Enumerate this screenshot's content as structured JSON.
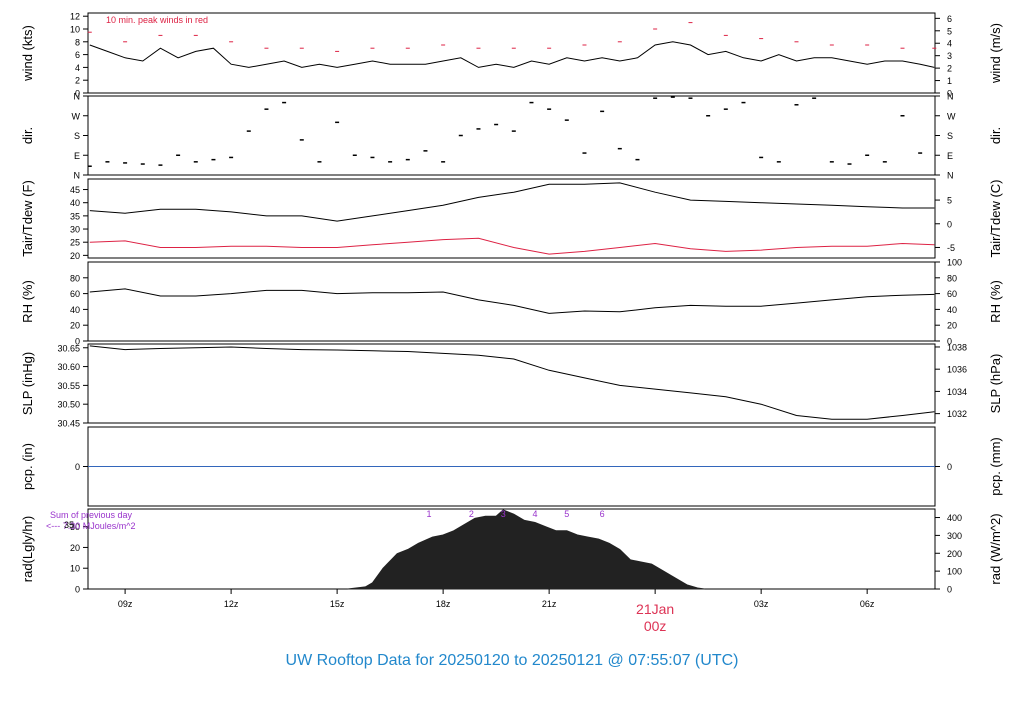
{
  "chart_data": {
    "type": "line",
    "title": "UW Rooftop Data for 20250120  to  20250121 @ 07:55:07  (UTC)",
    "x_axis": {
      "ticks": [
        "09z",
        "12z",
        "15z",
        "18z",
        "21z",
        "00z",
        "03z",
        "06z"
      ],
      "tick_hours": [
        9,
        12,
        15,
        18,
        21,
        24,
        27,
        30
      ],
      "range_hours": [
        7.95,
        31.92
      ],
      "date_marker": {
        "line1": "21Jan",
        "line2": "00z",
        "hour": 24
      }
    },
    "panels": [
      {
        "id": "wind",
        "ylabel_left": "wind (kts)",
        "ylabel_right": "wind (m/s)",
        "ylim": [
          0,
          12.5
        ],
        "left_ticks": [
          0,
          2,
          4,
          6,
          8,
          10,
          12
        ],
        "right_ticks": [
          0,
          1,
          2,
          3,
          4,
          5,
          6
        ],
        "annotation": "10 min. peak winds in red",
        "series": [
          {
            "name": "wind speed",
            "color": "#000000",
            "x": [
              8.0,
              8.5,
              9.0,
              9.5,
              10.0,
              10.5,
              11.0,
              11.5,
              12.0,
              12.5,
              13.0,
              13.5,
              14.0,
              14.5,
              15.0,
              15.5,
              16.0,
              16.5,
              17.0,
              17.5,
              18.0,
              18.5,
              19.0,
              19.5,
              20.0,
              20.5,
              21.0,
              21.5,
              22.0,
              22.5,
              23.0,
              23.5,
              24.0,
              24.5,
              25.0,
              25.5,
              26.0,
              26.5,
              27.0,
              27.5,
              28.0,
              28.5,
              29.0,
              29.5,
              30.0,
              30.5,
              31.0,
              31.5,
              31.9
            ],
            "y": [
              7.5,
              6.5,
              5.5,
              5.0,
              7.0,
              5.5,
              6.5,
              7.0,
              4.5,
              4.0,
              4.5,
              5.0,
              4.0,
              4.5,
              4.0,
              4.5,
              5.0,
              4.5,
              4.5,
              4.5,
              5.0,
              5.5,
              4.0,
              4.5,
              4.0,
              5.0,
              4.5,
              5.5,
              5.0,
              5.5,
              5.0,
              5.5,
              7.5,
              8.0,
              7.5,
              6.0,
              6.5,
              5.5,
              5.0,
              6.0,
              5.0,
              5.5,
              5.5,
              5.0,
              4.5,
              5.0,
              5.0,
              4.5,
              4.0
            ]
          },
          {
            "name": "10 min. peak winds",
            "color": "#dd2244",
            "x": [
              8.0,
              9.0,
              10.0,
              11.0,
              12.0,
              13.0,
              14.0,
              15.0,
              16.0,
              17.0,
              18.0,
              19.0,
              20.0,
              21.0,
              22.0,
              23.0,
              24.0,
              25.0,
              26.0,
              27.0,
              28.0,
              29.0,
              30.0,
              31.0,
              31.9
            ],
            "y": [
              9.5,
              8.0,
              9.0,
              9.0,
              8.0,
              7.0,
              7.0,
              6.5,
              7.0,
              7.0,
              7.5,
              7.0,
              7.0,
              7.0,
              7.5,
              8.0,
              10.0,
              11.0,
              9.0,
              8.5,
              8.0,
              7.5,
              7.5,
              7.0,
              7.0
            ]
          }
        ]
      },
      {
        "id": "dir",
        "ylabel_left": "dir.",
        "ylabel_right": "dir.",
        "ylim": [
          0,
          360
        ],
        "left_ticks": [
          "N",
          "E",
          "S",
          "W",
          "N"
        ],
        "right_ticks": [
          "N",
          "E",
          "S",
          "W",
          "N"
        ],
        "series": [
          {
            "name": "wind direction",
            "color": "#000000",
            "style": "dashes",
            "x": [
              8.0,
              8.5,
              9.0,
              9.5,
              10.0,
              10.5,
              11.0,
              11.5,
              12.0,
              12.5,
              13.0,
              13.5,
              14.0,
              14.5,
              15.0,
              15.5,
              16.0,
              16.5,
              17.0,
              17.5,
              18.0,
              18.5,
              19.0,
              19.5,
              20.0,
              20.5,
              21.0,
              21.5,
              22.0,
              22.5,
              23.0,
              23.5,
              24.0,
              24.5,
              25.0,
              25.5,
              26.0,
              26.5,
              27.0,
              27.5,
              28.0,
              28.5,
              29.0,
              29.5,
              30.0,
              30.5,
              31.0,
              31.5
            ],
            "y": [
              40,
              60,
              55,
              50,
              45,
              90,
              60,
              70,
              80,
              200,
              300,
              330,
              160,
              60,
              240,
              90,
              80,
              60,
              70,
              110,
              60,
              180,
              210,
              230,
              200,
              330,
              300,
              250,
              100,
              290,
              120,
              70,
              350,
              355,
              350,
              270,
              300,
              330,
              80,
              60,
              320,
              350,
              60,
              50,
              90,
              60,
              270,
              100
            ]
          }
        ]
      },
      {
        "id": "temp",
        "ylabel_left": "Tair/Tdew (F)",
        "ylabel_right": "Tair/Tdew (C)",
        "ylim": [
          19,
          49
        ],
        "left_ticks": [
          20,
          25,
          30,
          35,
          40,
          45
        ],
        "right_ticks": [
          -5,
          0,
          5
        ],
        "series": [
          {
            "name": "Tair",
            "color": "#000000",
            "x": [
              8.0,
              9.0,
              10.0,
              11.0,
              12.0,
              13.0,
              14.0,
              15.0,
              16.0,
              17.0,
              18.0,
              19.0,
              20.0,
              21.0,
              22.0,
              23.0,
              24.0,
              25.0,
              26.0,
              27.0,
              28.0,
              29.0,
              30.0,
              31.0,
              31.9
            ],
            "y": [
              37,
              36,
              37.5,
              37.5,
              36.5,
              35,
              35,
              33,
              35,
              37,
              39,
              42,
              44,
              47,
              47,
              47.5,
              44,
              41,
              40.5,
              40,
              39.5,
              39,
              38.5,
              38,
              38
            ]
          },
          {
            "name": "Tdew",
            "color": "#dd2244",
            "x": [
              8.0,
              9.0,
              10.0,
              11.0,
              12.0,
              13.0,
              14.0,
              15.0,
              16.0,
              17.0,
              18.0,
              19.0,
              20.0,
              21.0,
              22.0,
              23.0,
              24.0,
              25.0,
              26.0,
              27.0,
              28.0,
              29.0,
              30.0,
              31.0,
              31.9
            ],
            "y": [
              25,
              25.5,
              23,
              23,
              23.5,
              23.5,
              23,
              23,
              24,
              25,
              26,
              26.5,
              23,
              20.5,
              21.5,
              23,
              24.5,
              22.5,
              21.5,
              22,
              23,
              23.5,
              23.5,
              24.5,
              24
            ]
          }
        ]
      },
      {
        "id": "rh",
        "ylabel_left": "RH (%)",
        "ylabel_right": "RH (%)",
        "ylim": [
          0,
          100
        ],
        "left_ticks": [
          0,
          20,
          40,
          60,
          80
        ],
        "right_ticks": [
          0,
          20,
          40,
          60,
          80,
          100
        ],
        "series": [
          {
            "name": "RH",
            "color": "#000000",
            "x": [
              8.0,
              9.0,
              10.0,
              11.0,
              12.0,
              13.0,
              14.0,
              15.0,
              16.0,
              17.0,
              18.0,
              19.0,
              20.0,
              21.0,
              22.0,
              23.0,
              24.0,
              25.0,
              26.0,
              27.0,
              28.0,
              29.0,
              30.0,
              31.0,
              31.9
            ],
            "y": [
              62,
              66,
              57,
              57,
              60,
              64,
              64,
              60,
              61,
              61,
              62,
              52,
              45,
              35,
              38,
              37,
              42,
              45,
              44,
              44,
              48,
              52,
              56,
              58,
              59
            ]
          }
        ]
      },
      {
        "id": "slp",
        "ylabel_left": "SLP (inHg)",
        "ylabel_right": "SLP (hPa)",
        "ylim": [
          30.45,
          30.66
        ],
        "left_ticks": [
          30.45,
          30.5,
          30.55,
          30.6,
          30.65
        ],
        "left_tick_labels": [
          "30.45",
          "30.50",
          "30.55",
          "30.60",
          "30.65"
        ],
        "right_ticks": [
          1032,
          1034,
          1036,
          1038
        ],
        "series": [
          {
            "name": "SLP",
            "color": "#000000",
            "x": [
              8.0,
              9.0,
              10.0,
              11.0,
              12.0,
              13.0,
              14.0,
              15.0,
              16.0,
              17.0,
              18.0,
              19.0,
              20.0,
              21.0,
              22.0,
              23.0,
              24.0,
              25.0,
              26.0,
              27.0,
              28.0,
              29.0,
              30.0,
              31.0,
              31.9
            ],
            "y": [
              30.655,
              30.645,
              30.648,
              30.65,
              30.652,
              30.648,
              30.645,
              30.644,
              30.642,
              30.64,
              30.635,
              30.63,
              30.62,
              30.59,
              30.57,
              30.55,
              30.54,
              30.53,
              30.52,
              30.5,
              30.47,
              30.46,
              30.46,
              30.47,
              30.48
            ]
          }
        ]
      },
      {
        "id": "pcp",
        "ylabel_left": "pcp. (in)",
        "ylabel_right": "pcp. (mm)",
        "ylim": [
          -1,
          1
        ],
        "left_ticks": [
          0
        ],
        "right_ticks": [
          0
        ],
        "series": [
          {
            "name": "precipitation",
            "color": "#3366bb",
            "x": [
              7.95,
              31.92
            ],
            "y": [
              0,
              0
            ]
          }
        ]
      },
      {
        "id": "rad",
        "ylabel_left": "rad(Lgly/hr)",
        "ylabel_right": "rad (W/m^2)",
        "ylim": [
          0,
          38.5
        ],
        "left_ticks": [
          0,
          10,
          20,
          30
        ],
        "right_ticks": [
          0,
          100,
          200,
          300,
          400
        ],
        "annotation_line1": "Sum of previous day",
        "annotation_line2": "<--- 7.30 MJoules/m^2",
        "annotation_overlap": "35",
        "hour_marks": [
          "1",
          "2",
          "3",
          "4",
          "5",
          "6"
        ],
        "hour_mark_x": [
          17.6,
          18.8,
          19.7,
          20.6,
          21.5,
          22.5
        ],
        "series": [
          {
            "name": "radiation",
            "color": "#222222",
            "type": "area",
            "x": [
              15.3,
              15.8,
              16.0,
              16.3,
              16.7,
              17.0,
              17.3,
              17.7,
              18.0,
              18.3,
              18.6,
              18.9,
              19.2,
              19.5,
              19.7,
              20.0,
              20.3,
              20.6,
              20.9,
              21.2,
              21.5,
              21.8,
              22.1,
              22.4,
              22.7,
              23.0,
              23.3,
              23.6,
              23.9,
              24.2,
              24.5,
              24.9,
              25.2,
              25.4
            ],
            "y": [
              0,
              1,
              3,
              10,
              17,
              19,
              22,
              25,
              26,
              28,
              31,
              34,
              35,
              35,
              38,
              36,
              33,
              32,
              30,
              28,
              28,
              26,
              25,
              24,
              22,
              19,
              14,
              13,
              12,
              9,
              6,
              2,
              0.5,
              0
            ]
          }
        ]
      }
    ]
  }
}
